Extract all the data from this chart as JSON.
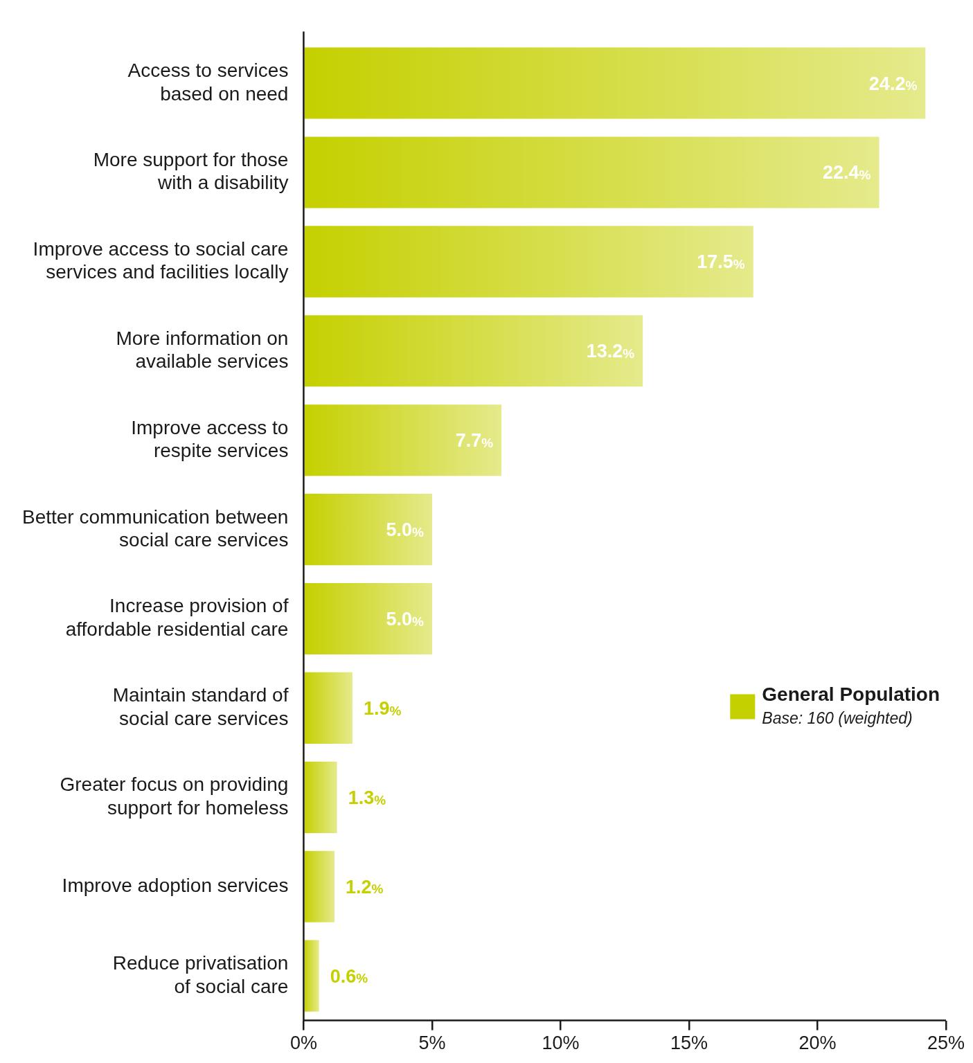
{
  "chart_data": {
    "type": "bar",
    "orientation": "horizontal",
    "categories": [
      "Access to services based on need",
      "More support for those with a disability",
      "Improve access to social care services and facilities locally",
      "More information on available services",
      "Improve access to respite services",
      "Better communication between social care services",
      "Increase provision of affordable residential care",
      "Maintain standard of social care services",
      "Greater focus on providing support for homeless",
      "Improve adoption services",
      "Reduce privatisation of social care"
    ],
    "series": [
      {
        "name": "General Population",
        "color": "#c5d000",
        "values": [
          24.2,
          22.4,
          17.5,
          13.2,
          7.7,
          5.0,
          5.0,
          1.9,
          1.3,
          1.2,
          0.6
        ],
        "value_labels": [
          "24.2%",
          "22.4%",
          "17.5%",
          "13.2%",
          "7.7%",
          "5.0%",
          "5.0%",
          "1.9%",
          "1.3%",
          "1.2%",
          "0.6%"
        ]
      }
    ],
    "xlim": [
      0,
      25
    ],
    "xticks": [
      {
        "value": 0,
        "label": "0%"
      },
      {
        "value": 5,
        "label": "5%"
      },
      {
        "value": 10,
        "label": "10%"
      },
      {
        "value": 15,
        "label": "15%"
      },
      {
        "value": 20,
        "label": "20%"
      },
      {
        "value": 25,
        "label": "25%"
      }
    ],
    "grid": false,
    "legend": "right",
    "annotations": [
      "Base: 160 (weighted)"
    ]
  }
}
